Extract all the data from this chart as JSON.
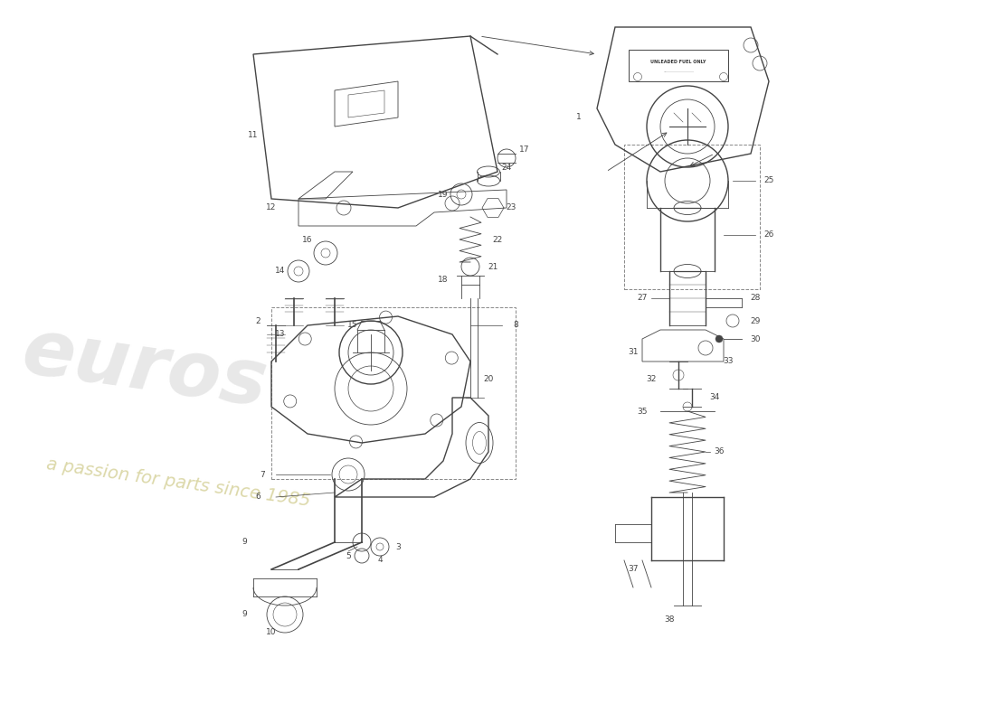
{
  "bg_color": "#ffffff",
  "line_color": "#444444",
  "label_color": "#444444",
  "wm1_color": "#e8e8e8",
  "wm2_color": "#d8d4a0",
  "wm1_text": "euros",
  "wm2_text": "a passion for parts since 1985",
  "dashed_color": "#888888"
}
